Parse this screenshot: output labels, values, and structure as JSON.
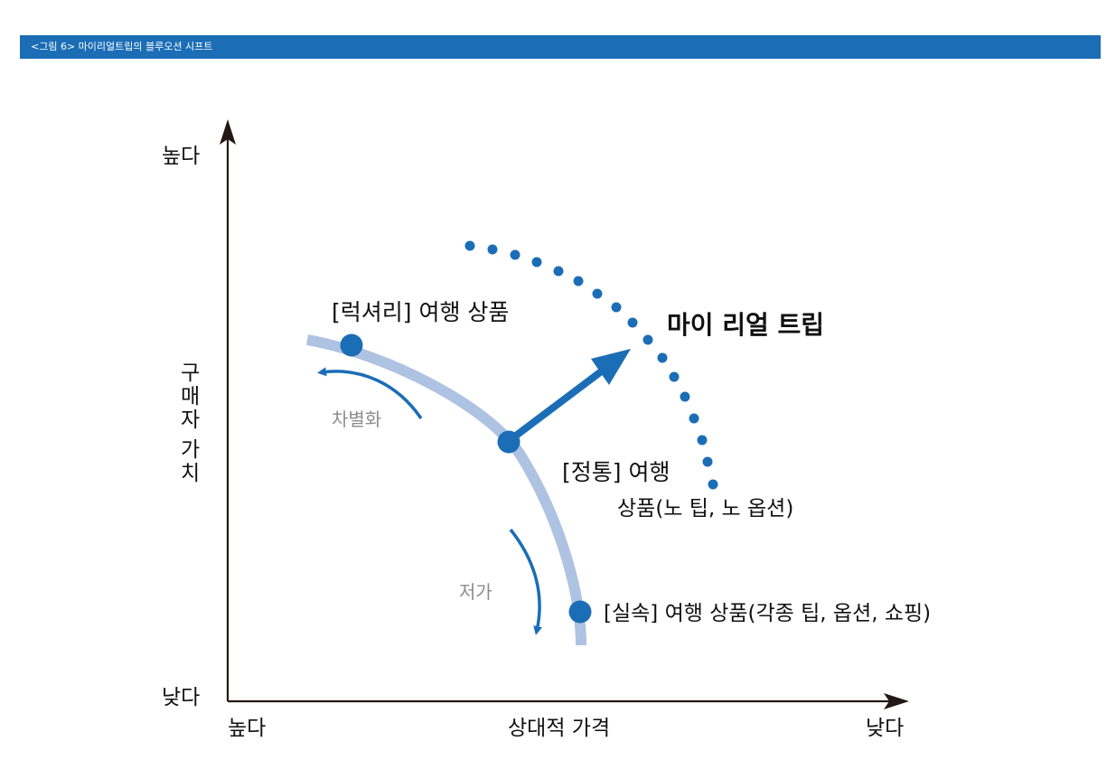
{
  "title": "<그림 6> 마이리얼트립의 블루오션 시프트",
  "axes": {
    "y_high": "높다",
    "y_low": "낮다",
    "y_title_chars": [
      "구",
      "매",
      "자",
      "가",
      "치"
    ],
    "x_high": "높다",
    "x_title": "상대적 가격",
    "x_low": "낮다"
  },
  "labels": {
    "luxury": "[럭셔리] 여행 상품",
    "differentiation": "차별화",
    "myrealtrip": "마이 리얼 트립",
    "standard_line1": "[정통] 여행",
    "standard_line2": "상품(노 팁, 노 옵션)",
    "low_price": "저가",
    "budget": "[실속] 여행 상품(각종 팁, 옵션, 쇼핑)"
  },
  "colors": {
    "accent": "#1b6db6",
    "curve": "#aec2e2",
    "axis": "#231815",
    "muted_text": "#8c8c8c"
  }
}
